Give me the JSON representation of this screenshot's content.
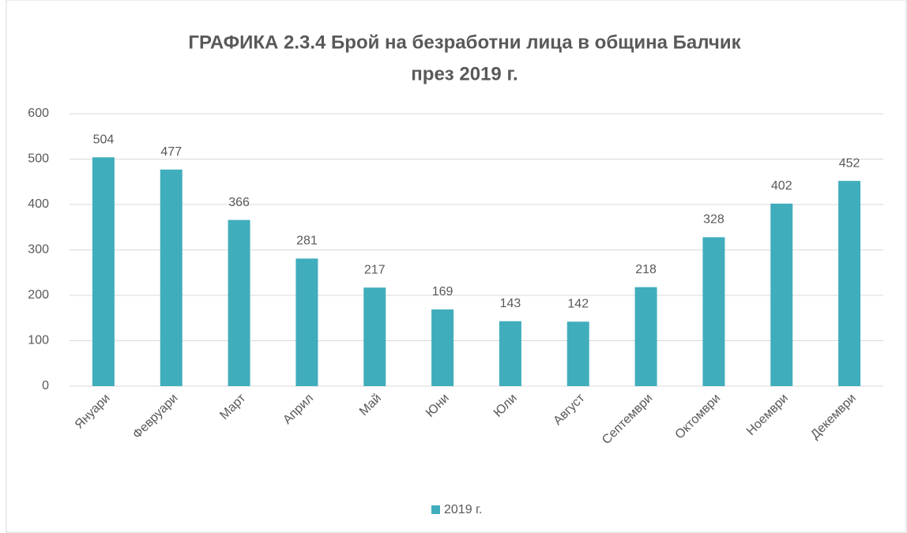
{
  "chart_data": {
    "type": "bar",
    "title": [
      "ГРАФИКА  2.3.4 Брой на безработни лица в община Балчик",
      "през 2019 г."
    ],
    "categories": [
      "Януари",
      "Февруари",
      "Март",
      "Април",
      "Май",
      "Юни",
      "Юли",
      "Август",
      "Септември",
      "Октомври",
      "Ноември",
      "Декември"
    ],
    "series": [
      {
        "name": "2019 г.",
        "color": "#40adbc",
        "values": [
          504,
          477,
          366,
          281,
          217,
          169,
          143,
          142,
          218,
          328,
          402,
          452
        ]
      }
    ],
    "ylim": [
      0,
      600
    ],
    "yticks": [
      0,
      100,
      200,
      300,
      400,
      500,
      600
    ],
    "grid": true,
    "legend": "bottom"
  }
}
